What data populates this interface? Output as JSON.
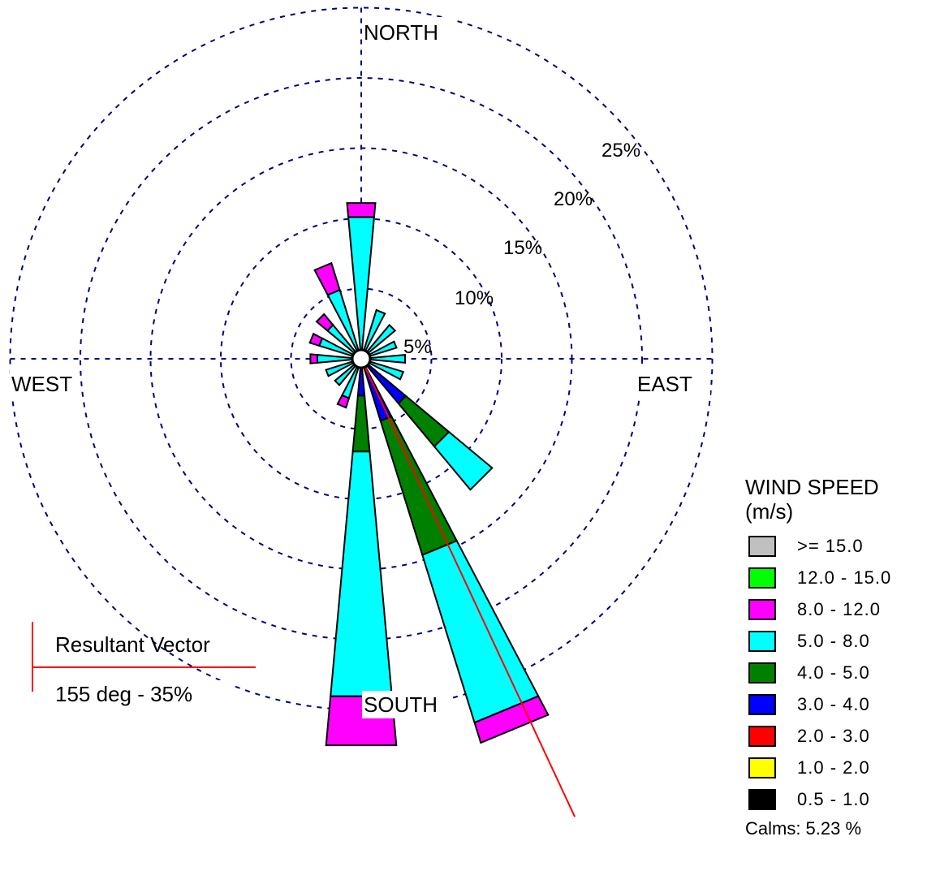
{
  "chart_data": {
    "type": "wind-rose",
    "directions": {
      "north": "NORTH",
      "south": "SOUTH",
      "east": "EAST",
      "west": "WEST"
    },
    "rings_percent": [
      5,
      10,
      15,
      20,
      25
    ],
    "ring_labels": [
      "5%",
      "10%",
      "15%",
      "20%",
      "25%"
    ],
    "calm_percent": 5.23,
    "legend": {
      "title_line1": "WIND SPEED",
      "title_line2": "(m/s)",
      "bins": [
        {
          "label": ">= 15.0",
          "color": "#c0c0c0"
        },
        {
          "label": "12.0 - 15.0",
          "color": "#00ff00"
        },
        {
          "label": "8.0 - 12.0",
          "color": "#ff00ff"
        },
        {
          "label": "5.0 - 8.0",
          "color": "#00ffff"
        },
        {
          "label": "4.0 - 5.0",
          "color": "#008000"
        },
        {
          "label": "3.0 - 4.0",
          "color": "#0000ff"
        },
        {
          "label": "2.0 - 3.0",
          "color": "#ff0000"
        },
        {
          "label": "1.0 - 2.0",
          "color": "#ffff00"
        },
        {
          "label": "0.5 - 1.0",
          "color": "#000000"
        }
      ],
      "calms_text": "Calms: 5.23 %"
    },
    "petal_bins": [
      "3.0 - 4.0",
      "4.0 - 5.0",
      "5.0 - 8.0",
      "8.0 - 12.0"
    ],
    "petals": [
      {
        "direction_deg": 180,
        "cumulative_percent": [
          2.0,
          6.0,
          23.5,
          27.0
        ]
      },
      {
        "direction_deg": 157.5,
        "cumulative_percent": [
          4.0,
          14.0,
          26.5,
          28.0
        ]
      },
      {
        "direction_deg": 135,
        "cumulative_percent": [
          3.5,
          7.5,
          11.5,
          null
        ]
      },
      {
        "direction_deg": 0,
        "cumulative_percent": [
          null,
          null,
          9.5,
          10.5
        ]
      },
      {
        "direction_deg": 337.5,
        "cumulative_percent": [
          null,
          null,
          4.5,
          6.5
        ]
      },
      {
        "direction_deg": 315,
        "cumulative_percent": [
          null,
          null,
          2.5,
          3.5
        ]
      },
      {
        "direction_deg": 292.5,
        "cumulative_percent": [
          null,
          null,
          2.5,
          3.2
        ]
      },
      {
        "direction_deg": 270,
        "cumulative_percent": [
          null,
          null,
          2.5,
          3.0
        ]
      },
      {
        "direction_deg": 247.5,
        "cumulative_percent": [
          null,
          null,
          2.0,
          null
        ]
      },
      {
        "direction_deg": 225,
        "cumulative_percent": [
          null,
          null,
          1.8,
          null
        ]
      },
      {
        "direction_deg": 202.5,
        "cumulative_percent": [
          null,
          null,
          2.3,
          3.0
        ]
      },
      {
        "direction_deg": 112.5,
        "cumulative_percent": [
          null,
          null,
          2.5,
          null
        ]
      },
      {
        "direction_deg": 90,
        "cumulative_percent": [
          null,
          null,
          2.5,
          null
        ]
      },
      {
        "direction_deg": 67.5,
        "cumulative_percent": [
          null,
          null,
          2.0,
          null
        ]
      },
      {
        "direction_deg": 45,
        "cumulative_percent": [
          null,
          null,
          2.5,
          null
        ]
      },
      {
        "direction_deg": 22.5,
        "cumulative_percent": [
          null,
          null,
          3.0,
          null
        ]
      }
    ],
    "resultant_vector": {
      "direction_deg": 155,
      "percent": 35,
      "label_title": "Resultant Vector",
      "label_value": "155 deg - 35%",
      "color": "#ff0000"
    },
    "grid_color": "#000080"
  }
}
